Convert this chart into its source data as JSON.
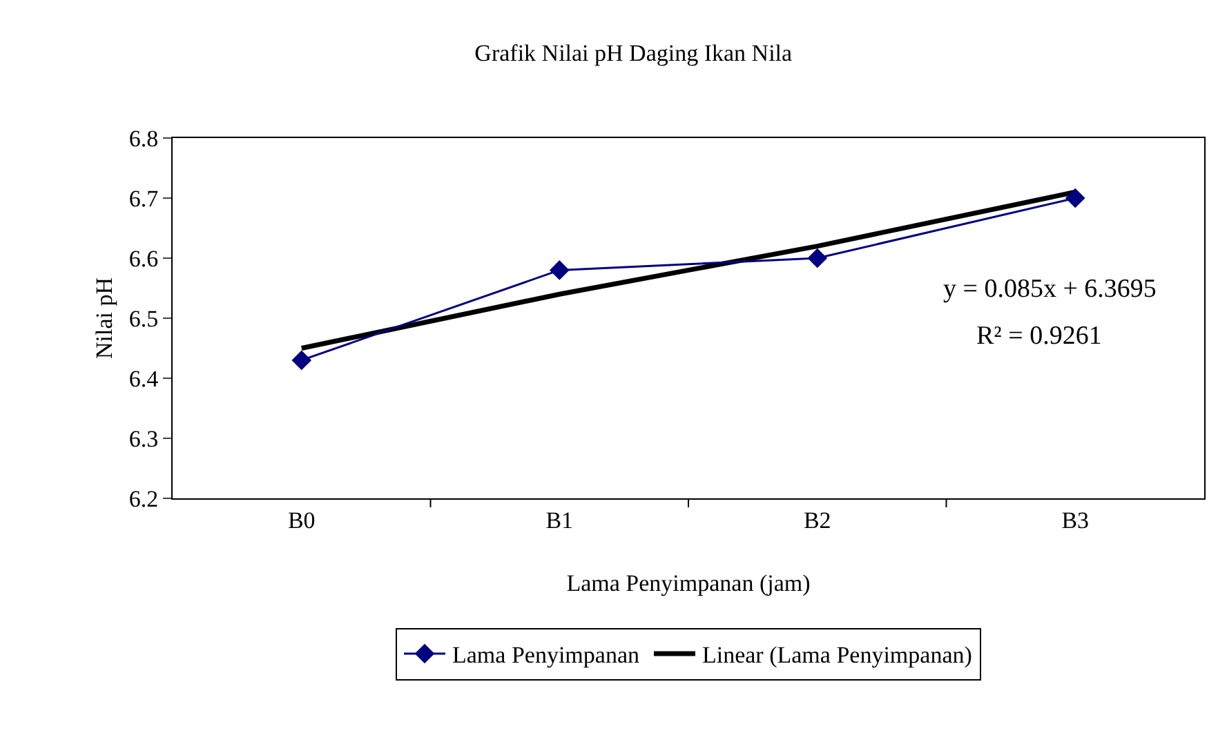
{
  "chart_data": {
    "type": "line",
    "title": "Grafik Nilai pH Daging Ikan Nila",
    "xlabel": "Lama Penyimpanan (jam)",
    "ylabel": "Nilai pH",
    "categories": [
      "B0",
      "B1",
      "B2",
      "B3"
    ],
    "series": [
      {
        "name": "Lama Penyimpanan",
        "color": "#000080",
        "values": [
          6.43,
          6.58,
          6.6,
          6.7
        ],
        "marker": "diamond"
      },
      {
        "name": "Linear (Lama Penyimpanan)",
        "color": "#000000",
        "values": [
          6.45,
          6.54,
          6.62,
          6.71
        ],
        "marker": "none"
      }
    ],
    "ylim": [
      6.2,
      6.8
    ],
    "yticks": [
      6.2,
      6.3,
      6.4,
      6.5,
      6.6,
      6.7,
      6.8
    ],
    "grid": false,
    "legend": "bottom",
    "line_style": "solid",
    "annotations": [
      "y = 0.085x + 6.3695",
      "R² = 0.9261"
    ]
  }
}
